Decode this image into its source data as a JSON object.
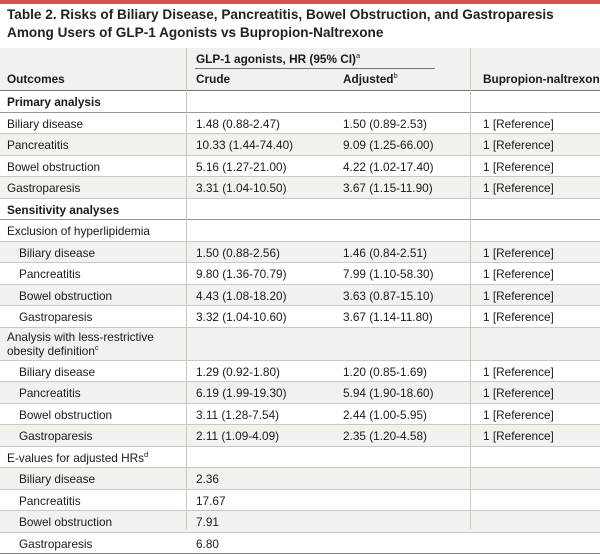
{
  "title": {
    "line1": "Table 2. Risks of Biliary Disease, Pancreatitis, Bowel Obstruction, and Gastroparesis",
    "line2": "Among Users of GLP-1 Agonists vs Bupropion-Naltrexone"
  },
  "header": {
    "group_label": "GLP-1 agonists, HR (95% CI)",
    "group_sup": "a",
    "outcomes": "Outcomes",
    "crude": "Crude",
    "adjusted": "Adjusted",
    "adjusted_sup": "b",
    "bupropion": "Bupropion-naltrexone"
  },
  "rows": [
    {
      "section": "Primary analysis"
    },
    {
      "outcome": "Biliary disease",
      "crude": "1.48 (0.88-2.47)",
      "adjusted": "1.50 (0.89-2.53)",
      "ref": "1 [Reference]"
    },
    {
      "outcome": "Pancreatitis",
      "crude": "10.33 (1.44-74.40)",
      "adjusted": "9.09 (1.25-66.00)",
      "ref": "1 [Reference]"
    },
    {
      "outcome": "Bowel obstruction",
      "crude": "5.16 (1.27-21.00)",
      "adjusted": "4.22 (1.02-17.40)",
      "ref": "1 [Reference]"
    },
    {
      "outcome": "Gastroparesis",
      "crude": "3.31 (1.04-10.50)",
      "adjusted": "3.67 (1.15-11.90)",
      "ref": "1 [Reference]"
    },
    {
      "section": "Sensitivity analyses"
    },
    {
      "subsection": "Exclusion of hyperlipidemia"
    },
    {
      "outcome": "Biliary disease",
      "crude": "1.50 (0.88-2.56)",
      "adjusted": "1.46 (0.84-2.51)",
      "ref": "1 [Reference]"
    },
    {
      "outcome": "Pancreatitis",
      "crude": "9.80 (1.36-70.79)",
      "adjusted": "7.99 (1.10-58.30)",
      "ref": "1 [Reference]"
    },
    {
      "outcome": "Bowel obstruction",
      "crude": "4.43 (1.08-18.20)",
      "adjusted": "3.63 (0.87-15.10)",
      "ref": "1 [Reference]"
    },
    {
      "outcome": "Gastroparesis",
      "crude": "3.32 (1.04-10.60)",
      "adjusted": "3.67 (1.14-11.80)",
      "ref": "1 [Reference]"
    },
    {
      "subsection": "Analysis with less-restrictive obesity definition",
      "sup": "c"
    },
    {
      "outcome": "Biliary disease",
      "crude": "1.29 (0.92-1.80)",
      "adjusted": "1.20 (0.85-1.69)",
      "ref": "1 [Reference]"
    },
    {
      "outcome": "Pancreatitis",
      "crude": "6.19 (1.99-19.30)",
      "adjusted": "5.94 (1.90-18.60)",
      "ref": "1 [Reference]"
    },
    {
      "outcome": "Bowel obstruction",
      "crude": "3.11 (1.28-7.54)",
      "adjusted": "2.44 (1.00-5.95)",
      "ref": "1 [Reference]"
    },
    {
      "outcome": "Gastroparesis",
      "crude": "2.11 (1.09-4.09)",
      "adjusted": "2.35 (1.20-4.58)",
      "ref": "1 [Reference]"
    },
    {
      "subsection": "E-values for adjusted HRs",
      "sup": "d"
    },
    {
      "outcome": "Biliary disease",
      "crude": "2.36"
    },
    {
      "outcome": "Pancreatitis",
      "crude": "17.67"
    },
    {
      "outcome": "Bowel obstruction",
      "crude": "7.91"
    },
    {
      "outcome": "Gastroparesis",
      "crude": "6.80"
    }
  ]
}
